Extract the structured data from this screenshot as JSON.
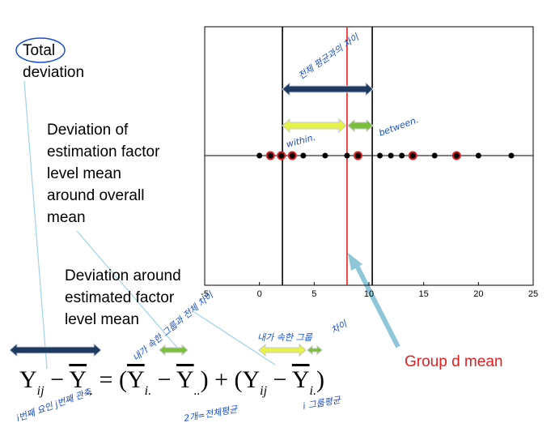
{
  "labels": {
    "total": [
      "Total",
      "deviation"
    ],
    "between": [
      "Deviation of",
      "estimation factor",
      "level mean",
      "around overall",
      "mean"
    ],
    "within": [
      "Deviation around",
      "estimated factor",
      "level mean"
    ],
    "group_mean": "Group d mean"
  },
  "chart_data": {
    "type": "scatter",
    "series": [
      {
        "color": "#000000",
        "x": [
          0,
          4,
          6,
          8,
          11,
          12,
          13,
          16,
          20,
          23
        ]
      },
      {
        "color": "#000000",
        "edge_color": "#e02020",
        "x": [
          1,
          2,
          3,
          9,
          14,
          18
        ]
      }
    ],
    "xlim": [
      -5,
      25
    ],
    "xticks": [
      -5,
      0,
      5,
      10,
      15,
      20,
      25
    ],
    "vlines": [
      {
        "x": 2.1,
        "color": "#000000"
      },
      {
        "x": 10.3,
        "color": "#000000"
      },
      {
        "x": 8,
        "color": "#e02020"
      }
    ]
  },
  "formula": [
    {
      "t": "Y",
      "sub": "ij"
    },
    {
      "t": " − "
    },
    {
      "t": "Y",
      "sub": "..",
      "bar": true
    },
    {
      "t": " = ("
    },
    {
      "t": "Y",
      "sub": "i.",
      "bar": true
    },
    {
      "t": " − "
    },
    {
      "t": "Y",
      "sub": "..",
      "bar": true
    },
    {
      "t": ") + ("
    },
    {
      "t": "Y",
      "sub": "ij"
    },
    {
      "t": " − "
    },
    {
      "t": "Y",
      "sub": "i.",
      "bar": true
    },
    {
      "t": ")"
    }
  ],
  "handwriting": [
    "전체 평균과의 차이",
    "within.",
    "between.",
    "내가 속한 그룹과 전체 차이",
    "차이",
    "내가 속한 그룹",
    "i번째 요인 j번째 관측",
    "2개=전체평균",
    "i 그룹평균"
  ]
}
